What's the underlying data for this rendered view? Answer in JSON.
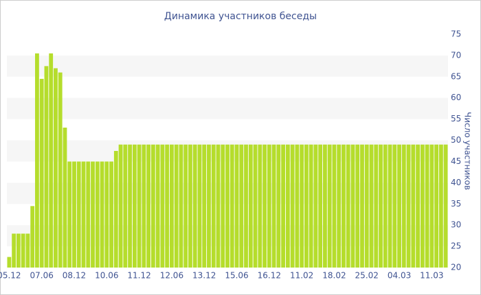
{
  "chart_data": {
    "type": "bar",
    "title": "Динамика участников беседы",
    "y_axis_label": "Число участников",
    "categories": [
      "05.12",
      null,
      null,
      null,
      null,
      null,
      null,
      "07.06",
      null,
      null,
      null,
      null,
      null,
      null,
      "08.12",
      null,
      null,
      null,
      null,
      null,
      null,
      "10.06",
      null,
      null,
      null,
      null,
      null,
      null,
      "11.12",
      null,
      null,
      null,
      null,
      null,
      null,
      "12.06",
      null,
      null,
      null,
      null,
      null,
      null,
      "13.12",
      null,
      null,
      null,
      null,
      null,
      null,
      "15.06",
      null,
      null,
      null,
      null,
      null,
      null,
      "16.12",
      null,
      null,
      null,
      null,
      null,
      null,
      "11.02",
      null,
      null,
      null,
      null,
      null,
      null,
      "18.02",
      null,
      null,
      null,
      null,
      null,
      null,
      "25.02",
      null,
      null,
      null,
      null,
      null,
      null,
      "04.03",
      null,
      null,
      null,
      null,
      null,
      null,
      "11.03",
      null,
      null,
      null
    ],
    "values": [
      22.5,
      28,
      28,
      28,
      28,
      34.5,
      70.5,
      64.5,
      67.5,
      70.5,
      67,
      66,
      53,
      45,
      45,
      45,
      45,
      45,
      45,
      45,
      45,
      45,
      45,
      47.5,
      49,
      49,
      49,
      49,
      49,
      49,
      49,
      49,
      49,
      49,
      49,
      49,
      49,
      49,
      49,
      49,
      49,
      49,
      49,
      49,
      49,
      49,
      49,
      49,
      49,
      49,
      49,
      49,
      49,
      49,
      49,
      49,
      49,
      49,
      49,
      49,
      49,
      49,
      49,
      49,
      49,
      49,
      49,
      49,
      49,
      49,
      49,
      49,
      49,
      49,
      49,
      49,
      49,
      49,
      49,
      49,
      49,
      49,
      49,
      49,
      49,
      49,
      49,
      49,
      49,
      49,
      49,
      49,
      49,
      49,
      49
    ],
    "color": "#b5dd2c",
    "ylim": [
      20,
      75
    ],
    "yticks": [
      20,
      25,
      30,
      35,
      40,
      45,
      50,
      55,
      60,
      65,
      70,
      75
    ],
    "y_axis_side": "right",
    "grid": "bands"
  }
}
